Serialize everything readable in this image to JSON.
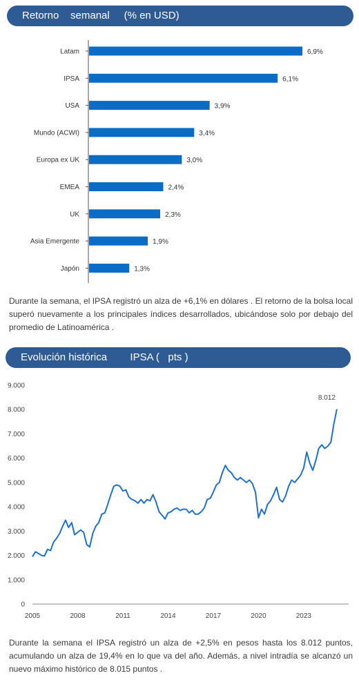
{
  "section1": {
    "header": "Retorno    semanal     (% en USD)",
    "paragraph": "Durante  la semana,  el IPSA registró  un alza de +6,1% en dólares . El retorno de la bolsa local superó nuevamente a los principales índices desarrollados, ubicándose solo por debajo del promedio de Latinoamérica ."
  },
  "section2": {
    "header": "Evolución histórica        IPSA (   pts )",
    "paragraph": "Durante la semana el IPSA registró un alza de +2,5% en pesos hasta los 8.012 puntos, acumulando un alza de 19,4% en lo que va del año. Además, a nivel intradía se alcanzó un nuevo máximo histórico de 8.015 puntos ."
  },
  "colors": {
    "bar": "#0a6cc4",
    "line": "#1f6fcf",
    "header_bg": "#2e5b93",
    "axis": "#555555"
  },
  "chart_data": [
    {
      "type": "bar",
      "orientation": "horizontal",
      "categories": [
        "Latam",
        "IPSA",
        "USA",
        "Mundo (ACWI)",
        "Europa ex UK",
        "EMEA",
        "UK",
        "Asia Emergente",
        "Japón"
      ],
      "values": [
        6.9,
        6.1,
        3.9,
        3.4,
        3.0,
        2.4,
        2.3,
        1.9,
        1.3
      ],
      "labels": [
        "6,9%",
        "6,1%",
        "3,9%",
        "3,4%",
        "3,0%",
        "2,4%",
        "2,3%",
        "1,9%",
        "1,3%"
      ],
      "xlim": [
        0,
        7.5
      ],
      "grid": false
    },
    {
      "type": "line",
      "ylim": [
        0,
        9000
      ],
      "yticks": [
        0,
        1000,
        2000,
        3000,
        4000,
        5000,
        6000,
        7000,
        8000,
        9000
      ],
      "ytick_labels": [
        "0",
        "1.000",
        "2.000",
        "3.000",
        "4.000",
        "5.000",
        "6.000",
        "7.000",
        "8.000",
        "9.000"
      ],
      "xlim": [
        2005,
        2025.25
      ],
      "xticks": [
        2005,
        2008,
        2011,
        2014,
        2017,
        2020,
        2023
      ],
      "xtick_labels": [
        "2005",
        "2008",
        "2011",
        "2014",
        "2017",
        "2020",
        "2023"
      ],
      "annotation": "8.012",
      "grid": false,
      "series": [
        {
          "x": [
            2005.0,
            2005.2,
            2005.4,
            2005.6,
            2005.8,
            2006.0,
            2006.2,
            2006.4,
            2006.6,
            2006.8,
            2007.0,
            2007.2,
            2007.4,
            2007.6,
            2007.8,
            2008.0,
            2008.2,
            2008.4,
            2008.6,
            2008.8,
            2009.0,
            2009.2,
            2009.4,
            2009.6,
            2009.8,
            2010.0,
            2010.2,
            2010.4,
            2010.6,
            2010.8,
            2011.0,
            2011.2,
            2011.4,
            2011.6,
            2011.8,
            2012.0,
            2012.2,
            2012.4,
            2012.6,
            2012.8,
            2013.0,
            2013.2,
            2013.4,
            2013.6,
            2013.8,
            2014.0,
            2014.2,
            2014.4,
            2014.6,
            2014.8,
            2015.0,
            2015.2,
            2015.4,
            2015.6,
            2015.8,
            2016.0,
            2016.2,
            2016.4,
            2016.6,
            2016.8,
            2017.0,
            2017.2,
            2017.4,
            2017.6,
            2017.8,
            2018.0,
            2018.2,
            2018.4,
            2018.6,
            2018.8,
            2019.0,
            2019.2,
            2019.4,
            2019.6,
            2019.8,
            2020.0,
            2020.2,
            2020.4,
            2020.6,
            2020.8,
            2021.0,
            2021.2,
            2021.4,
            2021.6,
            2021.8,
            2022.0,
            2022.2,
            2022.4,
            2022.6,
            2022.8,
            2023.0,
            2023.2,
            2023.4,
            2023.6,
            2023.8,
            2024.0,
            2024.2,
            2024.4,
            2024.6,
            2024.8,
            2025.0,
            2025.2
          ],
          "y": [
            1950,
            2150,
            2080,
            2000,
            1980,
            2250,
            2200,
            2550,
            2700,
            2900,
            3200,
            3450,
            3150,
            3350,
            2850,
            2950,
            3050,
            2950,
            2450,
            2350,
            2900,
            3200,
            3350,
            3700,
            3750,
            4100,
            4500,
            4850,
            4900,
            4850,
            4650,
            4700,
            4400,
            4300,
            4250,
            4150,
            4300,
            4150,
            4300,
            4250,
            4500,
            4200,
            3800,
            3650,
            3500,
            3750,
            3800,
            3900,
            3950,
            3850,
            3900,
            3900,
            3750,
            3850,
            3700,
            3700,
            3800,
            3950,
            4300,
            4350,
            4600,
            4900,
            5000,
            5400,
            5700,
            5500,
            5400,
            5200,
            5100,
            5200,
            5100,
            5000,
            5100,
            4950,
            4600,
            3550,
            3900,
            3700,
            4100,
            4250,
            4500,
            4800,
            4300,
            4200,
            4450,
            4850,
            5100,
            5000,
            5150,
            5300,
            5600,
            6250,
            5800,
            5500,
            5900,
            6400,
            6550,
            6400,
            6500,
            6650,
            7400,
            8012
          ]
        }
      ]
    }
  ]
}
